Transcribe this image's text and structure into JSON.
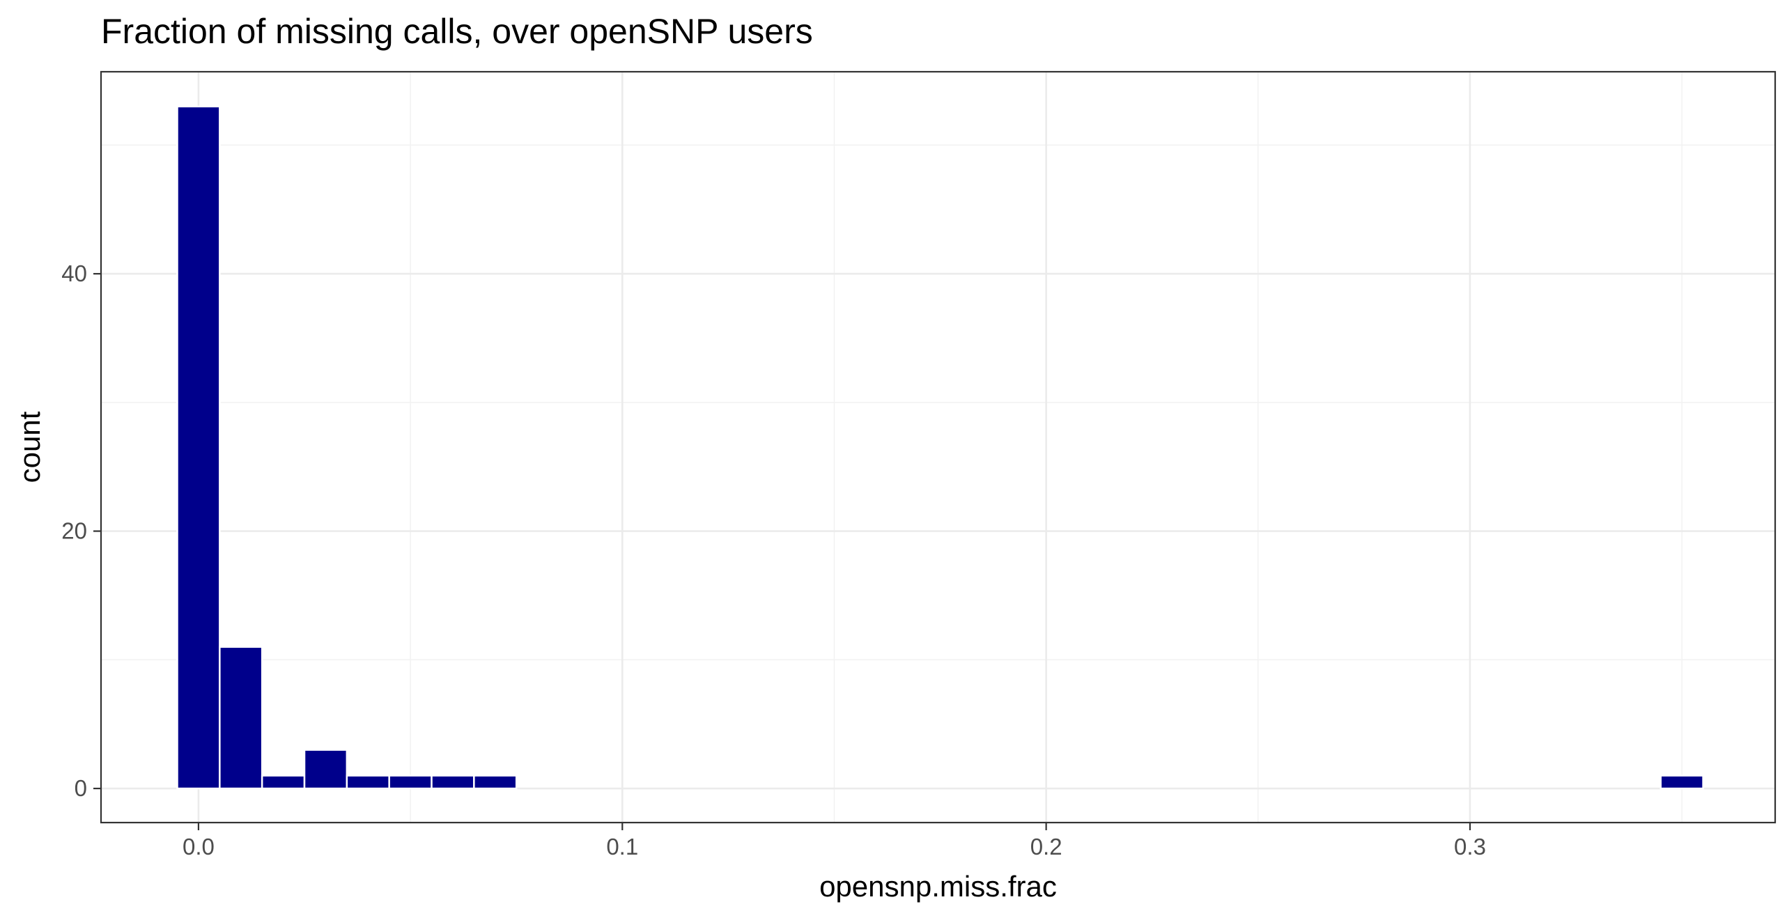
{
  "chart_data": {
    "type": "bar",
    "title": "Fraction of missing calls, over openSNP users",
    "xlabel": "opensnp.miss.frac",
    "ylabel": "count",
    "xlim": [
      -0.023,
      0.372
    ],
    "ylim": [
      -2.65,
      55.7
    ],
    "x_ticks": [
      0.0,
      0.1,
      0.2,
      0.3
    ],
    "x_tick_labels": [
      "0.0",
      "0.1",
      "0.2",
      "0.3"
    ],
    "y_ticks": [
      0,
      20,
      40
    ],
    "y_tick_labels": [
      "0",
      "20",
      "40"
    ],
    "bin_width": 0.01,
    "bins": [
      {
        "x": 0.0,
        "count": 53
      },
      {
        "x": 0.01,
        "count": 11
      },
      {
        "x": 0.02,
        "count": 1
      },
      {
        "x": 0.03,
        "count": 3
      },
      {
        "x": 0.04,
        "count": 1
      },
      {
        "x": 0.05,
        "count": 1
      },
      {
        "x": 0.06,
        "count": 1
      },
      {
        "x": 0.07,
        "count": 1
      },
      {
        "x": 0.35,
        "count": 1
      }
    ],
    "bar_color": "#00008B",
    "bar_outline": "#ffffff",
    "grid": true,
    "legend": "none"
  }
}
